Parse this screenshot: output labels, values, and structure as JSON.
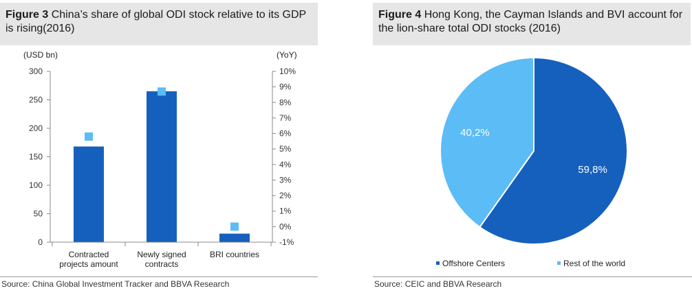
{
  "figure3": {
    "label": "Figure 3",
    "title": "China’s share of global ODI stock relative to its GDP is rising(2016)",
    "source": "Source:  China Global Investment Tracker and BBVA Research"
  },
  "figure4": {
    "label": "Figure 4",
    "title": "Hong Kong, the Cayman Islands and BVI account for the lion-share total ODI stocks (2016)",
    "source": "Source:  CEIC and BBVA Research"
  },
  "colors": {
    "dark_blue": "#1560bd",
    "light_blue": "#5cbcf5",
    "header_bg": "#e6e6e6"
  },
  "chart_data": [
    {
      "type": "bar",
      "title": "China’s share of global ODI stock relative to its GDP is rising(2016)",
      "categories": [
        [
          "Contracted",
          "projects amount"
        ],
        [
          "Newly signed",
          "contracts"
        ],
        [
          "BRI countries"
        ]
      ],
      "series": [
        {
          "name": "USD bn",
          "axis": "left",
          "kind": "bar",
          "values": [
            168,
            265,
            15
          ]
        },
        {
          "name": "YoY",
          "axis": "right",
          "kind": "marker",
          "values": [
            5.8,
            8.7,
            0.0
          ]
        }
      ],
      "ylabel": "(USD bn)",
      "ylabel_right": "(YoY)",
      "ylim": [
        0,
        300
      ],
      "yticks": [
        "0",
        "50",
        "100",
        "150",
        "200",
        "250",
        "300"
      ],
      "ylim_right": [
        -1,
        10
      ],
      "yticks_right": [
        "-1%",
        "0%",
        "1%",
        "2%",
        "3%",
        "4%",
        "5%",
        "6%",
        "7%",
        "8%",
        "9%",
        "10%"
      ]
    },
    {
      "type": "pie",
      "title": "Hong Kong, the Cayman Islands and BVI account for the lion-share total ODI stocks (2016)",
      "slices": [
        {
          "label": "Offshore Centers",
          "value": 59.8,
          "text": "59,8%"
        },
        {
          "label": "Rest of the world",
          "value": 40.2,
          "text": "40,2%"
        }
      ],
      "legend": "bottom"
    }
  ]
}
